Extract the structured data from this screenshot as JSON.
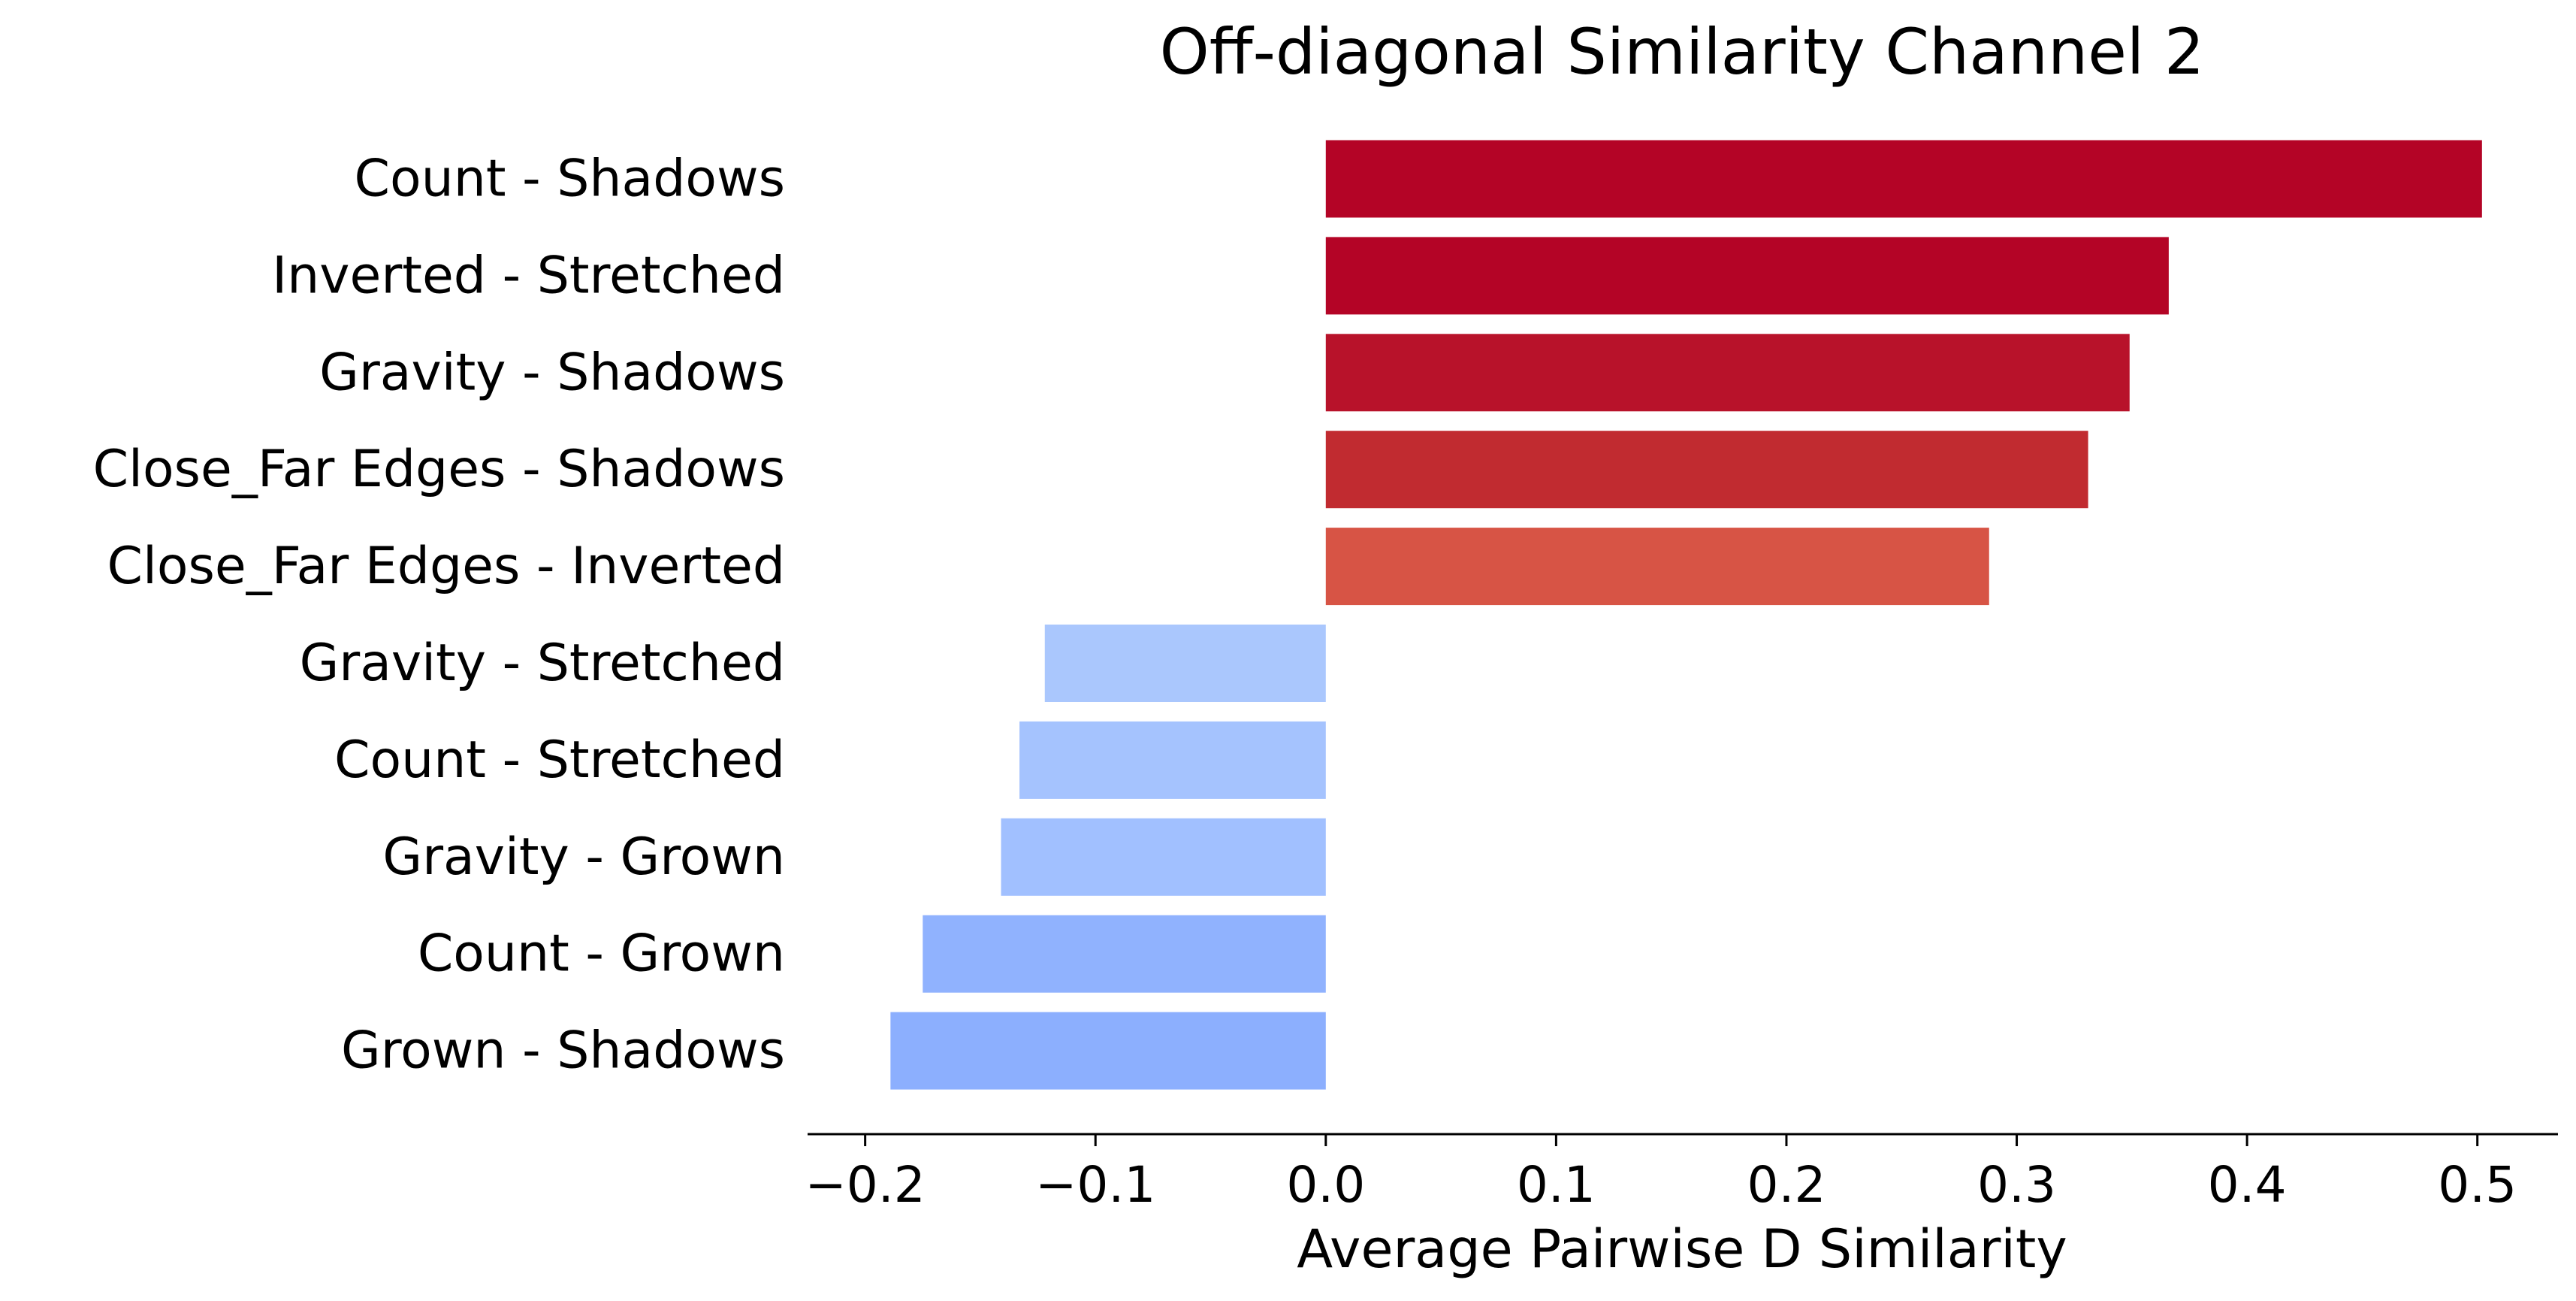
{
  "chart_data": {
    "type": "bar",
    "orientation": "horizontal",
    "title": "Off-diagonal Similarity Channel 2",
    "xlabel": "Average Pairwise D Similarity",
    "ylabel": "",
    "xlim": [
      -0.225,
      0.535
    ],
    "xticks": [
      -0.2,
      -0.1,
      0.0,
      0.1,
      0.2,
      0.3,
      0.4,
      0.5
    ],
    "xtick_labels": [
      "−0.2",
      "−0.1",
      "0.0",
      "0.1",
      "0.2",
      "0.3",
      "0.4",
      "0.5"
    ],
    "grid": false,
    "bars": [
      {
        "label": "Count - Shadows",
        "value": 0.502,
        "color": "#b40426"
      },
      {
        "label": "Inverted - Stretched",
        "value": 0.366,
        "color": "#b40426"
      },
      {
        "label": "Gravity - Shadows",
        "value": 0.349,
        "color": "#b8122a"
      },
      {
        "label": "Close_Far Edges - Shadows",
        "value": 0.331,
        "color": "#c12b30"
      },
      {
        "label": "Close_Far Edges - Inverted",
        "value": 0.288,
        "color": "#d75445"
      },
      {
        "label": "Gravity - Stretched",
        "value": -0.122,
        "color": "#aac7fd"
      },
      {
        "label": "Count - Stretched",
        "value": -0.133,
        "color": "#a5c3fe"
      },
      {
        "label": "Gravity - Grown",
        "value": -0.141,
        "color": "#a1c0ff"
      },
      {
        "label": "Count - Grown",
        "value": -0.175,
        "color": "#90b2fe"
      },
      {
        "label": "Grown - Shadows",
        "value": -0.189,
        "color": "#8caffe"
      }
    ]
  }
}
